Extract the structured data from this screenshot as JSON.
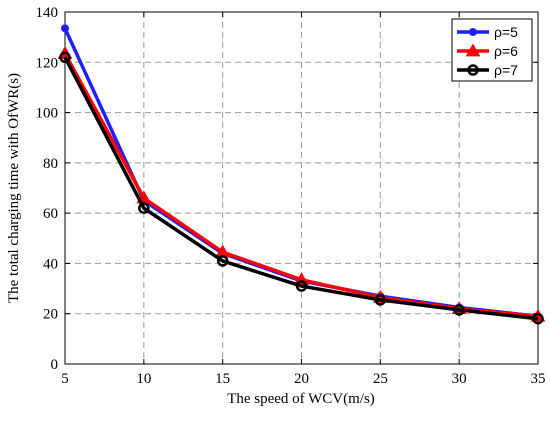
{
  "chart_data": {
    "type": "line",
    "title": "",
    "xlabel": "The speed of WCV(m/s)",
    "ylabel": "The total charging time with OfWR(s)",
    "x": [
      5,
      10,
      15,
      20,
      25,
      30,
      35
    ],
    "xlim": [
      5,
      35
    ],
    "ylim": [
      0,
      140
    ],
    "xticks": [
      "5",
      "10",
      "15",
      "20",
      "25",
      "30",
      "35"
    ],
    "yticks": [
      "0",
      "20",
      "40",
      "60",
      "80",
      "100",
      "120",
      "140"
    ],
    "grid": true,
    "legend_position": "top-right",
    "series": [
      {
        "name": "ρ=5",
        "color": "#1f1fff",
        "marker": "dot",
        "values": [
          133.5,
          65,
          44,
          33,
          27,
          22.5,
          19
        ]
      },
      {
        "name": "ρ=6",
        "color": "#ff0000",
        "marker": "triangle",
        "values": [
          123.5,
          66,
          44.5,
          33.5,
          26.5,
          22,
          19
        ]
      },
      {
        "name": "ρ=7",
        "color": "#000000",
        "marker": "circle",
        "values": [
          122,
          62,
          41,
          31,
          25.5,
          21.5,
          18
        ]
      }
    ]
  }
}
